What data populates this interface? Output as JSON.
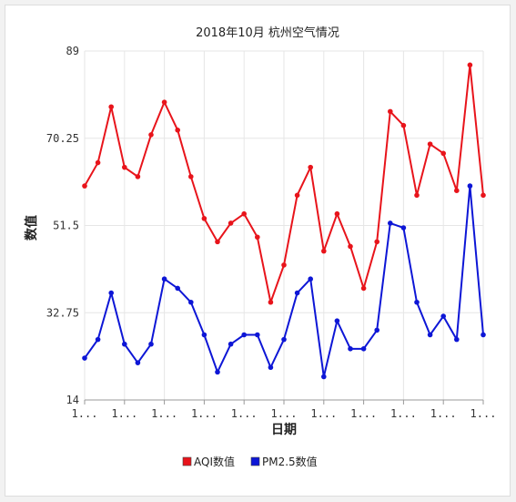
{
  "chart_data": {
    "type": "line",
    "title": "2018年10月 杭州空气情况",
    "xlabel": "日期",
    "ylabel": "数值",
    "ylim": [
      14,
      89
    ],
    "yticks": [
      "14",
      "32.75",
      "51.5",
      "70.25",
      "89"
    ],
    "x_tick_labels": [
      "1...",
      "1...",
      "1...",
      "1...",
      "1...",
      "1...",
      "1...",
      "1...",
      "1...",
      "1...",
      "1..."
    ],
    "x": [
      1,
      2,
      3,
      4,
      5,
      6,
      7,
      8,
      9,
      10,
      11,
      12,
      13,
      14,
      15,
      16,
      17,
      18,
      19,
      20,
      21,
      22,
      23,
      24,
      25,
      26,
      27,
      28,
      29,
      30,
      31
    ],
    "grid": true,
    "legend_position": "bottom",
    "series": [
      {
        "name": "AQI数值",
        "color": "#e8141b",
        "values": [
          60,
          65,
          77,
          64,
          62,
          71,
          78,
          72,
          62,
          53,
          48,
          52,
          54,
          49,
          35,
          43,
          58,
          64,
          46,
          54,
          47,
          38,
          48,
          76,
          73,
          58,
          69,
          67,
          59,
          86,
          58
        ]
      },
      {
        "name": "PM2.5数值",
        "color": "#0d16d6",
        "values": [
          23,
          27,
          37,
          26,
          22,
          26,
          40,
          38,
          35,
          28,
          20,
          26,
          28,
          28,
          21,
          27,
          37,
          40,
          19,
          31,
          25,
          25,
          29,
          52,
          51,
          35,
          28,
          32,
          27,
          60,
          28
        ]
      }
    ]
  }
}
